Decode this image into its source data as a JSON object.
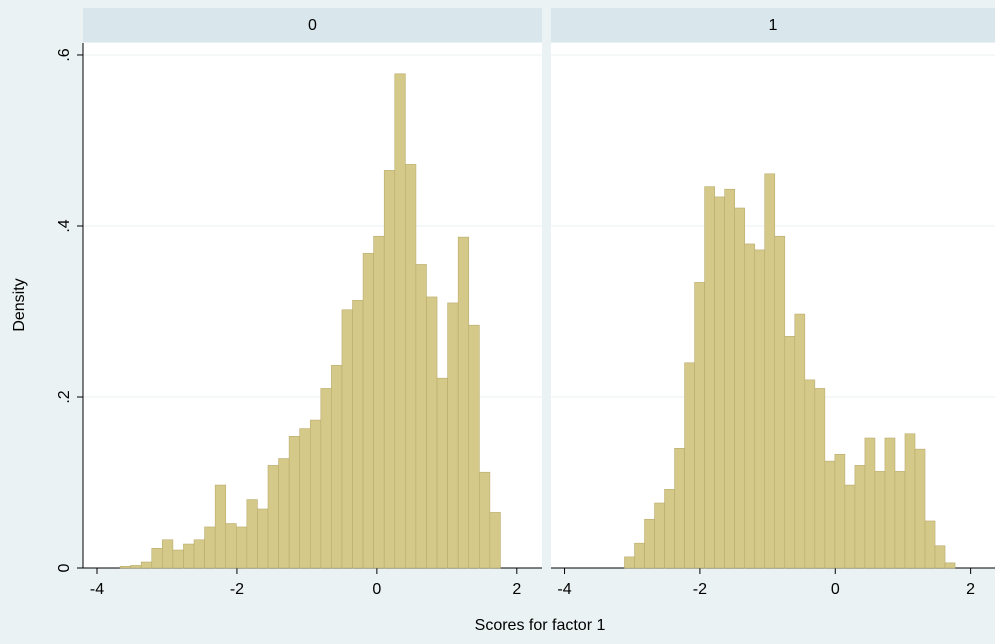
{
  "chart_data": {
    "type": "histogram",
    "xlabel": "Scores for factor 1",
    "ylabel": "Density",
    "color": "#d5c98a",
    "edgecolor": "#b9ab6b",
    "grid": true,
    "xlim": [
      -4.2,
      2.36
    ],
    "xticks": [
      -4,
      -2,
      0,
      2
    ],
    "ylim": [
      0,
      0.614
    ],
    "yticks": [
      0,
      {
        "value": 0.2,
        "label": ".2"
      },
      {
        "value": 0.4,
        "label": ".4"
      },
      {
        "value": 0.6,
        "label": ".6"
      }
    ],
    "panels": [
      {
        "title": "0",
        "bins": [
          -3.67,
          -3.519,
          -3.368,
          -3.217,
          -3.066,
          -2.915,
          -2.764,
          -2.613,
          -2.462,
          -2.311,
          -2.16,
          -2.009,
          -1.858,
          -1.707,
          -1.556,
          -1.405,
          -1.254,
          -1.103,
          -0.952,
          -0.801,
          -0.65,
          -0.499,
          -0.348,
          -0.197,
          -0.046,
          0.105,
          0.256,
          0.407,
          0.558,
          0.709,
          0.86,
          1.011,
          1.162,
          1.313,
          1.464,
          1.615,
          1.766
        ],
        "values": [
          0.002,
          0.003,
          0.007,
          0.023,
          0.033,
          0.021,
          0.028,
          0.033,
          0.048,
          0.097,
          0.052,
          0.048,
          0.08,
          0.069,
          0.12,
          0.128,
          0.154,
          0.163,
          0.173,
          0.21,
          0.237,
          0.302,
          0.313,
          0.368,
          0.388,
          0.465,
          0.578,
          0.472,
          0.355,
          0.317,
          0.222,
          0.31,
          0.387,
          0.284,
          0.112,
          0.065
        ]
      },
      {
        "title": "1",
        "bins": [
          -3.114,
          -2.966,
          -2.818,
          -2.67,
          -2.522,
          -2.374,
          -2.226,
          -2.078,
          -1.93,
          -1.782,
          -1.634,
          -1.486,
          -1.338,
          -1.19,
          -1.042,
          -0.894,
          -0.746,
          -0.598,
          -0.45,
          -0.302,
          -0.154,
          -0.006,
          0.142,
          0.29,
          0.438,
          0.586,
          0.734,
          0.882,
          1.03,
          1.178,
          1.326,
          1.474,
          1.622,
          1.77
        ],
        "values": [
          0.013,
          0.029,
          0.057,
          0.076,
          0.092,
          0.14,
          0.24,
          0.334,
          0.446,
          0.434,
          0.443,
          0.421,
          0.379,
          0.372,
          0.461,
          0.388,
          0.271,
          0.297,
          0.22,
          0.21,
          0.125,
          0.133,
          0.097,
          0.12,
          0.152,
          0.113,
          0.152,
          0.113,
          0.157,
          0.139,
          0.055,
          0.026,
          0.006
        ]
      }
    ]
  }
}
